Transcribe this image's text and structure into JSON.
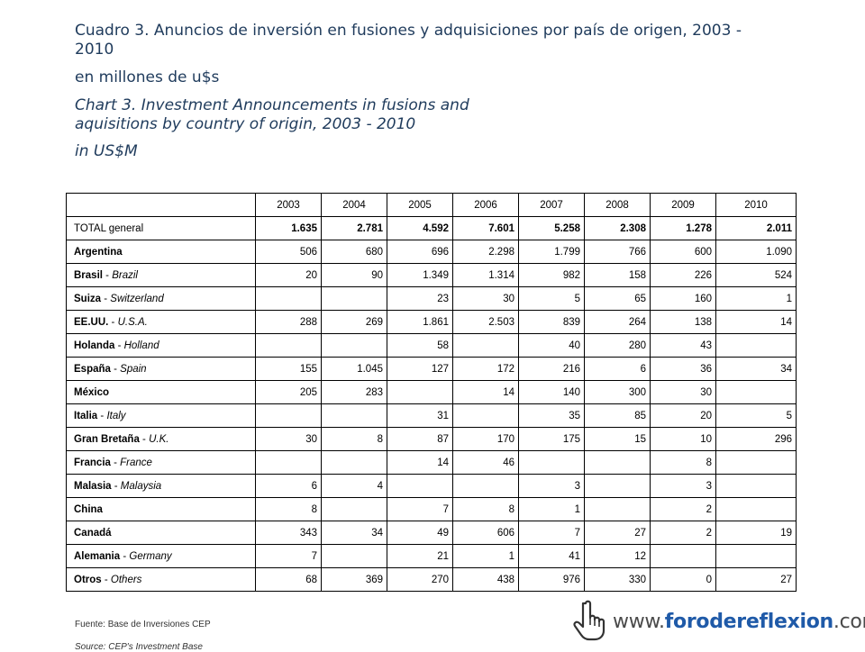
{
  "titles": {
    "main": "Cuadro 3. Anuncios de inversión en fusiones y adquisiciones por país de origen, 2003 - 2010",
    "unit_es": "en millones de u$s",
    "main_en": "Chart 3. Investment Announcements in fusions and aquisitions by country of origin, 2003 - 2010",
    "unit_en": "in US$M"
  },
  "table": {
    "years": [
      "2003",
      "2004",
      "2005",
      "2006",
      "2007",
      "2008",
      "2009",
      "2010"
    ],
    "rows": [
      {
        "label_es": "TOTAL general",
        "label_en": "",
        "values": [
          "1.635",
          "2.781",
          "4.592",
          "7.601",
          "5.258",
          "2.308",
          "1.278",
          "2.011"
        ]
      },
      {
        "label_es": "Argentina",
        "label_en": "",
        "values": [
          "506",
          "680",
          "696",
          "2.298",
          "1.799",
          "766",
          "600",
          "1.090"
        ]
      },
      {
        "label_es": "Brasil",
        "label_en": "Brazil",
        "values": [
          "20",
          "90",
          "1.349",
          "1.314",
          "982",
          "158",
          "226",
          "524"
        ]
      },
      {
        "label_es": "Suiza",
        "label_en": "Switzerland",
        "values": [
          "",
          "",
          "23",
          "30",
          "5",
          "65",
          "160",
          "1"
        ]
      },
      {
        "label_es": "EE.UU.",
        "label_en": "U.S.A.",
        "values": [
          "288",
          "269",
          "1.861",
          "2.503",
          "839",
          "264",
          "138",
          "14"
        ]
      },
      {
        "label_es": "Holanda",
        "label_en": "Holland",
        "values": [
          "",
          "",
          "58",
          "",
          "40",
          "280",
          "43",
          ""
        ]
      },
      {
        "label_es": "España",
        "label_en": "Spain",
        "values": [
          "155",
          "1.045",
          "127",
          "172",
          "216",
          "6",
          "36",
          "34"
        ]
      },
      {
        "label_es": "México",
        "label_en": "",
        "values": [
          "205",
          "283",
          "",
          "14",
          "140",
          "300",
          "30",
          ""
        ]
      },
      {
        "label_es": "Italia",
        "label_en": "Italy",
        "values": [
          "",
          "",
          "31",
          "",
          "35",
          "85",
          "20",
          "5"
        ]
      },
      {
        "label_es": "Gran Bretaña",
        "label_en": "U.K.",
        "values": [
          "30",
          "8",
          "87",
          "170",
          "175",
          "15",
          "10",
          "296"
        ]
      },
      {
        "label_es": "Francia",
        "label_en": "France",
        "values": [
          "",
          "",
          "14",
          "46",
          "",
          "",
          "8",
          ""
        ]
      },
      {
        "label_es": "Malasia",
        "label_en": "Malaysia",
        "values": [
          "6",
          "4",
          "",
          "",
          "3",
          "",
          "3",
          ""
        ]
      },
      {
        "label_es": "China",
        "label_en": "",
        "values": [
          "8",
          "",
          "7",
          "8",
          "1",
          "",
          "2",
          ""
        ]
      },
      {
        "label_es": "Canadá",
        "label_en": "",
        "values": [
          "343",
          "34",
          "49",
          "606",
          "7",
          "27",
          "2",
          "19"
        ]
      },
      {
        "label_es": "Alemania",
        "label_en": "Germany",
        "values": [
          "7",
          "",
          "21",
          "1",
          "41",
          "12",
          "",
          ""
        ]
      },
      {
        "label_es": "Otros",
        "label_en": "Others",
        "values": [
          "68",
          "369",
          "270",
          "438",
          "976",
          "330",
          "0",
          "27"
        ]
      }
    ]
  },
  "footer": {
    "source_es": "Fuente: Base de Inversiones CEP",
    "source_en": "Source: CEP's Investment Base"
  },
  "logo": {
    "prefix": "www.",
    "brand": "forodereflexion",
    "suffix": ".com.ar",
    "icon": "hand-pointer-icon"
  }
}
